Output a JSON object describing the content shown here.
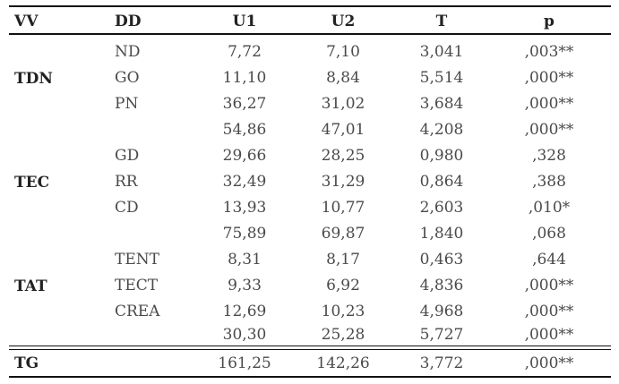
{
  "header": {
    "vv": "VV",
    "dd": "DD",
    "u1": "U1",
    "u2": "U2",
    "t": "T",
    "p": "p"
  },
  "groups": {
    "tdn": "TDN",
    "tec": "TEC",
    "tat": "TAT",
    "tg": "TG"
  },
  "rows": [
    {
      "dd": "ND",
      "u1": "7,72",
      "u2": "7,10",
      "t": "3,041",
      "p": ",003**"
    },
    {
      "dd": "GO",
      "u1": "11,10",
      "u2": "8,84",
      "t": "5,514",
      "p": ",000**"
    },
    {
      "dd": "PN",
      "u1": "36,27",
      "u2": "31,02",
      "t": "3,684",
      "p": ",000**"
    },
    {
      "dd": "",
      "u1": "54,86",
      "u2": "47,01",
      "t": "4,208",
      "p": ",000**"
    },
    {
      "dd": "GD",
      "u1": "29,66",
      "u2": "28,25",
      "t": "0,980",
      "p": ",328"
    },
    {
      "dd": "RR",
      "u1": "32,49",
      "u2": "31,29",
      "t": "0,864",
      "p": ",388"
    },
    {
      "dd": "CD",
      "u1": "13,93",
      "u2": "10,77",
      "t": "2,603",
      "p": ",010*"
    },
    {
      "dd": "",
      "u1": "75,89",
      "u2": "69,87",
      "t": "1,840",
      "p": ",068"
    },
    {
      "dd": "TENT",
      "u1": "8,31",
      "u2": "8,17",
      "t": "0,463",
      "p": ",644"
    },
    {
      "dd": "TECT",
      "u1": "9,33",
      "u2": "6,92",
      "t": "4,836",
      "p": ",000**"
    },
    {
      "dd": "CREA",
      "u1": "12,69",
      "u2": "10,23",
      "t": "4,968",
      "p": ",000**"
    },
    {
      "dd": "",
      "u1": "30,30",
      "u2": "25,28",
      "t": "5,727",
      "p": ",000**"
    }
  ],
  "total": {
    "u1": "161,25",
    "u2": "142,26",
    "t": "3,772",
    "p": ",000**"
  }
}
